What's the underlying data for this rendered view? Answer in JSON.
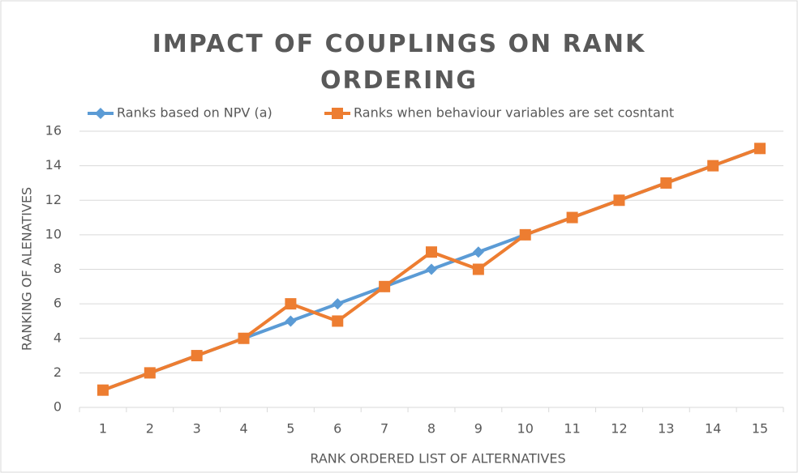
{
  "chart_data": {
    "type": "line",
    "title": "IMPACT OF COUPLINGS ON RANK ORDERING",
    "xlabel": "RANK ORDERED LIST OF ALTERNATIVES",
    "ylabel": "RANKING OF ALENATIVES",
    "categories": [
      "1",
      "2",
      "3",
      "4",
      "5",
      "6",
      "7",
      "8",
      "9",
      "10",
      "11",
      "12",
      "13",
      "14",
      "15"
    ],
    "series": [
      {
        "name": "Ranks based on NPV (a)",
        "color": "#5b9bd5",
        "marker": "diamond",
        "values": [
          1,
          2,
          3,
          4,
          5,
          6,
          7,
          8,
          9,
          10,
          11,
          12,
          13,
          14,
          15
        ]
      },
      {
        "name": "Ranks when behaviour variables are set cosntant",
        "color": "#ed7d31",
        "marker": "square",
        "values": [
          1,
          2,
          3,
          4,
          6,
          5,
          7,
          9,
          8,
          10,
          11,
          12,
          13,
          14,
          15
        ]
      }
    ],
    "ylim": [
      0,
      16
    ],
    "yticks": [
      0,
      2,
      4,
      6,
      8,
      10,
      12,
      14,
      16
    ],
    "grid": true,
    "legend": "top"
  }
}
